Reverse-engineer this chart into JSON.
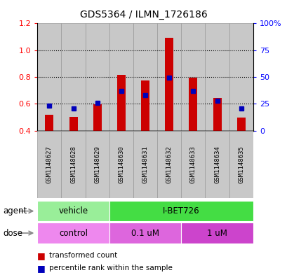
{
  "title": "GDS5364 / ILMN_1726186",
  "samples": [
    "GSM1148627",
    "GSM1148628",
    "GSM1148629",
    "GSM1148630",
    "GSM1148631",
    "GSM1148632",
    "GSM1148633",
    "GSM1148634",
    "GSM1148635"
  ],
  "red_values": [
    0.52,
    0.505,
    0.595,
    0.815,
    0.775,
    1.095,
    0.795,
    0.645,
    0.495
  ],
  "blue_values": [
    0.585,
    0.565,
    0.605,
    0.695,
    0.665,
    0.795,
    0.695,
    0.625,
    0.565
  ],
  "ylim_left": [
    0.4,
    1.2
  ],
  "ylim_right": [
    0,
    100
  ],
  "yticks_left": [
    0.4,
    0.6,
    0.8,
    1.0,
    1.2
  ],
  "yticks_right": [
    0,
    25,
    50,
    75,
    100
  ],
  "ytick_labels_right": [
    "0",
    "25",
    "50",
    "75",
    "100%"
  ],
  "bar_width": 0.35,
  "red_color": "#CC0000",
  "blue_color": "#0000BB",
  "bg_color": "#FFFFFF",
  "bar_bg_color": "#C8C8C8",
  "bar_bg_edge": "#999999",
  "agent_vehicle_color": "#99EE99",
  "agent_ibet_color": "#44DD44",
  "dose_control_color": "#EE88EE",
  "dose_01_color": "#DD66DD",
  "dose_1_color": "#CC44CC",
  "legend_red": "transformed count",
  "legend_blue": "percentile rank within the sample",
  "base_value": 0.4,
  "grid_yticks": [
    0.6,
    0.8,
    1.0
  ]
}
